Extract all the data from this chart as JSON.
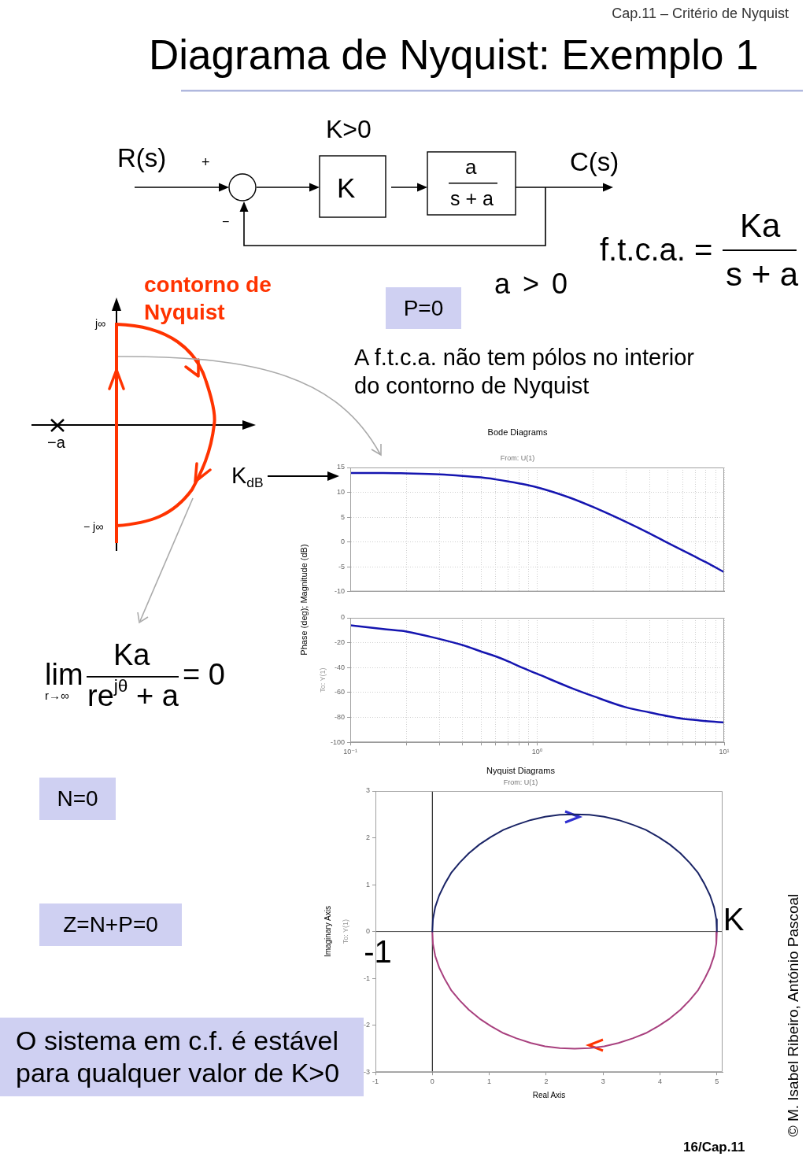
{
  "chart_data": [
    {
      "type": "other",
      "title": "Diagrama de Nyquist: Exemplo 1",
      "annotations": [
        "Cap.11 – Critério de Nyquist",
        "K>0",
        "R(s)",
        "+",
        "K",
        "a",
        "s + a",
        "C(s)",
        "−",
        "f.t.c.a. =",
        "Ka",
        "s + a",
        "a > 0",
        "contorno de Nyquist",
        "P=0",
        "A f.t.c.a. não tem pólos no interior do contorno de Nyquist",
        "j∞",
        "−a",
        "K$_{dB}$",
        "− j∞",
        "lim",
        "r→∞",
        "Ka",
        "re$^{jθ}$ + a",
        "= 0",
        "N=0",
        "Z=N+P=0",
        "O sistema em c.f. é estável para qualquer valor de K>0",
        "© M. Isabel Ribeiro, António Pascoal",
        "16/Cap.11"
      ]
    },
    {
      "type": "line",
      "title": "Bode Diagrams",
      "subtitle": "From: U(1)",
      "ylabel": "Phase (deg); Magnitude (dB)",
      "x": [
        0.1,
        0.15,
        0.2,
        0.3,
        0.4,
        0.5,
        0.6,
        0.7,
        0.8,
        1,
        1.5,
        2,
        3,
        4,
        5,
        6,
        7,
        8,
        10
      ],
      "values": [
        13.9,
        13.9,
        13.8,
        13.6,
        13.3,
        13.0,
        12.6,
        12.2,
        11.8,
        11.0,
        8.9,
        7.0,
        4.0,
        1.7,
        -0.2,
        -1.7,
        -3.0,
        -4.1,
        -6.1
      ],
      "color": "#1515b0",
      "log": "x",
      "xlim": [
        0.1,
        10
      ],
      "xticks": [
        0.1,
        0.2,
        0.3,
        0.4,
        0.5,
        0.6,
        0.7,
        0.8,
        0.9,
        1,
        2,
        3,
        4,
        5,
        6,
        7,
        8,
        9,
        10
      ],
      "ylim": [
        -10,
        15
      ],
      "yticks": [
        -10,
        -5,
        0,
        5,
        10,
        15
      ],
      "grid": true,
      "tick_labels": "y"
    },
    {
      "type": "line",
      "annotations": [
        "To: Y(1)"
      ],
      "x": [
        0.1,
        0.15,
        0.2,
        0.3,
        0.4,
        0.5,
        0.6,
        0.7,
        0.8,
        1,
        1.5,
        2,
        3,
        4,
        5,
        6,
        7,
        8,
        10
      ],
      "values": [
        -6,
        -9,
        -11,
        -17,
        -22,
        -27,
        -31,
        -35,
        -39,
        -45,
        -56,
        -63,
        -72,
        -76,
        -79,
        -81,
        -82,
        -83,
        -84
      ],
      "color": "#1515b0",
      "log": "x",
      "xlim": [
        0.1,
        10
      ],
      "xticks": [
        {
          "value": 0.1,
          "label": "10⁻¹"
        },
        {
          "value": 0.2,
          "label": null
        },
        {
          "value": 0.3,
          "label": null
        },
        {
          "value": 0.4,
          "label": null
        },
        {
          "value": 0.5,
          "label": null
        },
        {
          "value": 0.6,
          "label": null
        },
        {
          "value": 0.7,
          "label": null
        },
        {
          "value": 0.8,
          "label": null
        },
        {
          "value": 0.9,
          "label": null
        },
        {
          "value": 1,
          "label": "10⁰"
        },
        {
          "value": 2,
          "label": null
        },
        {
          "value": 3,
          "label": null
        },
        {
          "value": 4,
          "label": null
        },
        {
          "value": 5,
          "label": null
        },
        {
          "value": 6,
          "label": null
        },
        {
          "value": 7,
          "label": null
        },
        {
          "value": 8,
          "label": null
        },
        {
          "value": 9,
          "label": null
        },
        {
          "value": 10,
          "label": "10¹"
        }
      ],
      "ylim": [
        -100,
        0
      ],
      "yticks": [
        -100,
        -80,
        -60,
        -40,
        -20,
        0
      ],
      "grid": true
    },
    {
      "type": "line",
      "title": "Nyquist Diagrams",
      "subtitle": "From: U(1)",
      "xlabel": "Real Axis",
      "ylabel": "Imaginary Axis",
      "annotations": [
        "To: Y(1)",
        {
          "text": "K",
          "x": 5,
          "y": 0
        },
        {
          "text": "-1",
          "x": -1,
          "y": 0
        }
      ],
      "series": [
        {
          "color": "#1a2466",
          "x": [
            0,
            0.01,
            0.05,
            0.12,
            0.22,
            0.33,
            0.48,
            0.64,
            0.83,
            1.03,
            1.25,
            1.48,
            1.73,
            1.98,
            2.24,
            2.5,
            2.76,
            3.02,
            3.27,
            3.52,
            3.75,
            3.97,
            4.17,
            4.36,
            4.52,
            4.67,
            4.78,
            4.88,
            4.95,
            4.99,
            5
          ],
          "values": [
            0,
            0.26,
            0.52,
            0.77,
            1.02,
            1.25,
            1.47,
            1.67,
            1.86,
            2.02,
            2.17,
            2.28,
            2.38,
            2.45,
            2.49,
            2.5,
            2.49,
            2.45,
            2.38,
            2.28,
            2.17,
            2.02,
            1.86,
            1.67,
            1.47,
            1.25,
            1.02,
            0.77,
            0.52,
            0.26,
            0
          ]
        },
        {
          "color": "#a8407e",
          "x": [
            5,
            4.99,
            4.95,
            4.88,
            4.78,
            4.67,
            4.52,
            4.36,
            4.17,
            3.97,
            3.75,
            3.52,
            3.27,
            3.02,
            2.76,
            2.5,
            2.24,
            1.98,
            1.73,
            1.48,
            1.25,
            1.03,
            0.83,
            0.64,
            0.48,
            0.33,
            0.22,
            0.12,
            0.05,
            0.01,
            0
          ],
          "values": [
            0,
            -0.26,
            -0.52,
            -0.77,
            -1.02,
            -1.25,
            -1.47,
            -1.67,
            -1.86,
            -2.02,
            -2.17,
            -2.28,
            -2.38,
            -2.45,
            -2.49,
            -2.5,
            -2.49,
            -2.45,
            -2.38,
            -2.28,
            -2.17,
            -2.02,
            -1.86,
            -1.67,
            -1.47,
            -1.25,
            -1.02,
            -0.77,
            -0.52,
            -0.26,
            0
          ]
        }
      ],
      "xlim": [
        -1,
        5.1
      ],
      "xticks": [
        -1,
        0,
        1,
        2,
        3,
        4,
        5
      ],
      "ylim": [
        -3,
        3
      ],
      "yticks": [
        -3,
        -2,
        -1,
        0,
        1,
        2,
        3
      ],
      "ref_lines": [
        {
          "axis": "x",
          "value": 0,
          "color": "#000000"
        },
        {
          "axis": "y",
          "value": 0,
          "color": "#404040"
        }
      ]
    }
  ]
}
